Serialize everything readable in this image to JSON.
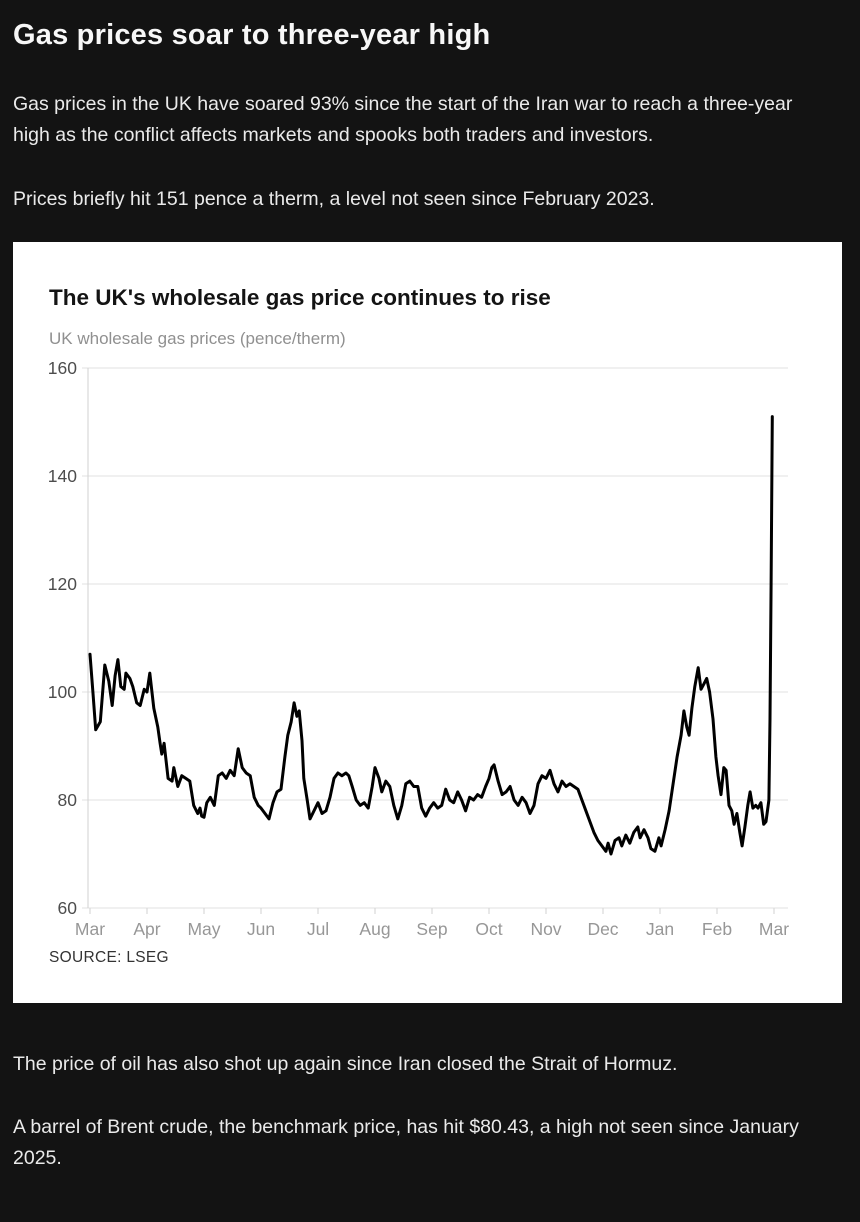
{
  "article": {
    "headline": "Gas prices soar to three-year high",
    "intro_paragraphs": [
      "Gas prices in the UK have soared 93% since the start of the Iran war to reach a three-year high as the conflict affects markets and spooks both traders and investors.",
      "Prices briefly hit 151 pence a therm, a level not seen since February 2023."
    ],
    "outro_paragraphs": [
      "The price of oil has also shot up again since Iran closed the Strait of Hormuz.",
      "A barrel of Brent crude, the benchmark price, has hit $80.43, a high not seen since January 2025."
    ],
    "background_color": "#131313",
    "text_color": "#eaeaea"
  },
  "chart_card": {
    "title": "The UK's wholesale gas price continues to rise",
    "subtitle": "UK wholesale gas prices (pence/therm)",
    "source": "SOURCE: LSEG",
    "background_color": "#ffffff"
  },
  "chart_data": {
    "type": "line",
    "title": "The UK's wholesale gas price continues to rise",
    "ylabel": "UK wholesale gas prices (pence/therm)",
    "ylim": [
      60,
      160
    ],
    "yticks": [
      60,
      80,
      100,
      120,
      140,
      160
    ],
    "x_unit": "months from start (March of previous year = 0)",
    "x_tick_labels": [
      "Mar",
      "Apr",
      "May",
      "Jun",
      "Jul",
      "Aug",
      "Sep",
      "Oct",
      "Nov",
      "Dec",
      "Jan",
      "Feb",
      "Mar"
    ],
    "grid": true,
    "legend": "none",
    "line_color": "#000000",
    "line_width": 3,
    "colors": {
      "grid": "#e6e6e6",
      "axis": "#d8d8d8",
      "y_label": "#4d4d4d",
      "x_label": "#979797"
    },
    "latest_value_pence": 151,
    "series": [
      {
        "name": "UK wholesale gas price (pence/therm)",
        "x": [
          0.0,
          0.05,
          0.1,
          0.18,
          0.26,
          0.33,
          0.39,
          0.44,
          0.49,
          0.54,
          0.6,
          0.63,
          0.7,
          0.75,
          0.82,
          0.88,
          0.95,
          1.0,
          1.05,
          1.12,
          1.19,
          1.23,
          1.26,
          1.3,
          1.37,
          1.44,
          1.47,
          1.54,
          1.61,
          1.68,
          1.75,
          1.82,
          1.89,
          1.93,
          1.96,
          2.0,
          2.05,
          2.11,
          2.18,
          2.25,
          2.32,
          2.39,
          2.46,
          2.53,
          2.6,
          2.67,
          2.74,
          2.81,
          2.88,
          2.95,
          3.0,
          3.07,
          3.14,
          3.21,
          3.28,
          3.35,
          3.42,
          3.47,
          3.53,
          3.58,
          3.63,
          3.67,
          3.72,
          3.75,
          3.81,
          3.86,
          3.93,
          4.0,
          4.07,
          4.14,
          4.21,
          4.28,
          4.35,
          4.42,
          4.49,
          4.54,
          4.6,
          4.67,
          4.74,
          4.81,
          4.88,
          4.95,
          5.0,
          5.07,
          5.12,
          5.19,
          5.26,
          5.33,
          5.4,
          5.47,
          5.54,
          5.61,
          5.68,
          5.75,
          5.82,
          5.89,
          5.96,
          6.03,
          6.1,
          6.17,
          6.24,
          6.31,
          6.38,
          6.45,
          6.52,
          6.59,
          6.66,
          6.73,
          6.8,
          6.87,
          6.94,
          7.0,
          7.05,
          7.09,
          7.16,
          7.23,
          7.3,
          7.37,
          7.44,
          7.51,
          7.58,
          7.65,
          7.72,
          7.79,
          7.86,
          7.93,
          8.0,
          8.07,
          8.14,
          8.21,
          8.28,
          8.35,
          8.42,
          8.49,
          8.56,
          8.63,
          8.7,
          8.77,
          8.84,
          8.91,
          8.98,
          9.05,
          9.09,
          9.14,
          9.21,
          9.28,
          9.33,
          9.4,
          9.47,
          9.54,
          9.61,
          9.65,
          9.72,
          9.79,
          9.84,
          9.91,
          9.98,
          10.02,
          10.09,
          10.16,
          10.23,
          10.3,
          10.37,
          10.42,
          10.47,
          10.51,
          10.56,
          10.61,
          10.67,
          10.72,
          10.77,
          10.82,
          10.87,
          10.93,
          10.98,
          11.02,
          11.07,
          11.12,
          11.16,
          11.21,
          11.26,
          11.3,
          11.35,
          11.4,
          11.44,
          11.49,
          11.54,
          11.58,
          11.63,
          11.68,
          11.72,
          11.77,
          11.82,
          11.86,
          11.91,
          11.93,
          11.95,
          11.97
        ],
        "y": [
          107,
          100,
          93,
          94.5,
          105,
          102,
          97.5,
          103,
          106,
          101,
          100.5,
          103.5,
          102.5,
          101,
          98,
          97.5,
          100.5,
          100,
          103.5,
          97,
          93.5,
          90.5,
          88.5,
          90.5,
          84,
          83.5,
          86,
          82.5,
          84.5,
          84,
          83.5,
          79,
          77.5,
          78.5,
          77,
          76.8,
          79.5,
          80.5,
          79,
          84.5,
          85,
          84,
          85.5,
          84.5,
          89.5,
          86,
          85,
          84.5,
          80.5,
          79,
          78.5,
          77.5,
          76.5,
          79.5,
          81.5,
          82,
          88,
          92,
          94.5,
          98,
          95.5,
          96.5,
          91,
          84,
          80,
          76.5,
          78,
          79.5,
          77.5,
          78,
          80.5,
          84,
          85,
          84.5,
          85,
          84.5,
          82.5,
          80,
          79,
          79.5,
          78.5,
          82.5,
          86,
          84,
          81.5,
          83.5,
          82.5,
          79,
          76.5,
          79,
          83,
          83.5,
          82.5,
          82.5,
          78.5,
          77,
          78.5,
          79.5,
          78.5,
          79,
          82,
          80,
          79.5,
          81.5,
          80,
          78,
          80.5,
          80,
          81,
          80.5,
          82.5,
          84,
          86,
          86.5,
          83.5,
          81,
          81.5,
          82.5,
          80,
          79,
          80.5,
          79.5,
          77.5,
          79,
          83,
          84.5,
          84,
          85.5,
          83,
          81.5,
          83.5,
          82.5,
          83,
          82.5,
          82,
          80,
          78,
          76,
          74,
          72.5,
          71.5,
          70.5,
          72,
          70,
          72.5,
          73,
          71.5,
          73.5,
          72,
          74,
          75,
          73,
          74.5,
          73,
          71,
          70.5,
          73,
          71.5,
          74.5,
          78,
          83,
          88,
          92,
          96.5,
          93.5,
          92,
          97,
          101,
          104.5,
          100.5,
          101.5,
          102.5,
          100,
          95,
          88,
          84.5,
          81,
          86,
          85.5,
          79,
          78,
          75.5,
          77.5,
          74,
          71.5,
          75,
          79,
          81.5,
          78.5,
          79,
          78.5,
          79.5,
          75.5,
          76,
          80,
          95,
          120,
          151
        ]
      }
    ]
  }
}
